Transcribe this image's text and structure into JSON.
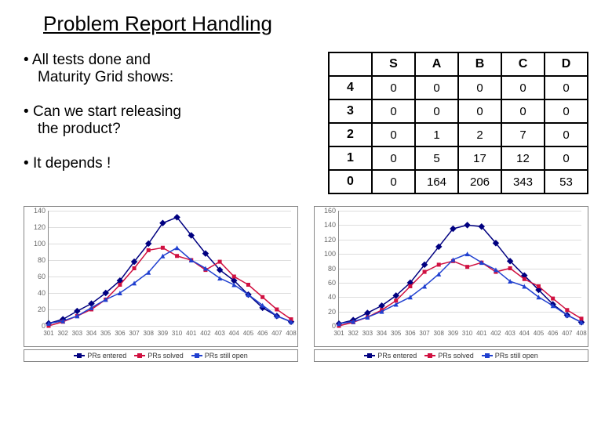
{
  "title": "Problem Report Handling",
  "bullets": [
    {
      "line1": "All tests done and",
      "line2": "Maturity Grid shows:"
    },
    {
      "line1": "Can we start releasing",
      "line2": "the product?"
    },
    {
      "line1": "It depends !",
      "line2": ""
    }
  ],
  "table": {
    "col_headers": [
      "S",
      "A",
      "B",
      "C",
      "D"
    ],
    "row_headers": [
      "4",
      "3",
      "2",
      "1",
      "0"
    ],
    "rows": [
      [
        "0",
        "0",
        "0",
        "0",
        "0"
      ],
      [
        "0",
        "0",
        "0",
        "0",
        "0"
      ],
      [
        "0",
        "1",
        "2",
        "7",
        "0"
      ],
      [
        "0",
        "5",
        "17",
        "12",
        "0"
      ],
      [
        "0",
        "164",
        "206",
        "343",
        "53"
      ]
    ]
  },
  "chart1": {
    "ymax": 140,
    "ytick_step": 20,
    "x_labels": [
      "301",
      "302",
      "303",
      "304",
      "305",
      "306",
      "307",
      "308",
      "309",
      "310",
      "401",
      "402",
      "403",
      "404",
      "405",
      "406",
      "407",
      "408"
    ],
    "series": {
      "entered": {
        "color": "#000080",
        "marker": "diamond",
        "values": [
          3,
          8,
          18,
          27,
          40,
          55,
          78,
          100,
          125,
          132,
          110,
          88,
          68,
          55,
          38,
          22,
          12,
          5
        ]
      },
      "solved": {
        "color": "#d01040",
        "marker": "square",
        "values": [
          0,
          5,
          12,
          20,
          32,
          50,
          70,
          92,
          95,
          85,
          80,
          68,
          78,
          60,
          50,
          35,
          20,
          8
        ]
      },
      "open": {
        "color": "#2040d0",
        "marker": "triangle",
        "values": [
          3,
          6,
          12,
          22,
          32,
          40,
          52,
          65,
          85,
          95,
          80,
          70,
          58,
          50,
          38,
          25,
          12,
          5
        ]
      }
    },
    "background": "#ffffff",
    "grid_color": "#dddddd",
    "axis_color": "#888888",
    "label_fontsize": 9
  },
  "chart2": {
    "ymax": 160,
    "ytick_step": 20,
    "x_labels": [
      "301",
      "302",
      "303",
      "304",
      "305",
      "306",
      "307",
      "308",
      "309",
      "310",
      "401",
      "402",
      "403",
      "404",
      "405",
      "406",
      "407",
      "408"
    ],
    "series": {
      "entered": {
        "color": "#000080",
        "marker": "diamond",
        "values": [
          3,
          8,
          18,
          28,
          42,
          60,
          85,
          110,
          135,
          140,
          138,
          115,
          90,
          70,
          50,
          30,
          15,
          5
        ]
      },
      "solved": {
        "color": "#d01040",
        "marker": "square",
        "values": [
          0,
          5,
          12,
          22,
          35,
          55,
          75,
          85,
          90,
          82,
          88,
          75,
          80,
          65,
          55,
          38,
          22,
          10
        ]
      },
      "open": {
        "color": "#2040d0",
        "marker": "triangle",
        "values": [
          3,
          6,
          12,
          20,
          30,
          40,
          55,
          72,
          92,
          100,
          88,
          78,
          62,
          55,
          40,
          28,
          15,
          5
        ]
      }
    },
    "background": "#ffffff",
    "grid_color": "#dddddd",
    "axis_color": "#888888",
    "label_fontsize": 9
  },
  "legend_labels": [
    "PRs entered",
    "PRs solved",
    "PRs still open"
  ],
  "legend_colors": [
    "#000080",
    "#d01040",
    "#2040d0"
  ]
}
